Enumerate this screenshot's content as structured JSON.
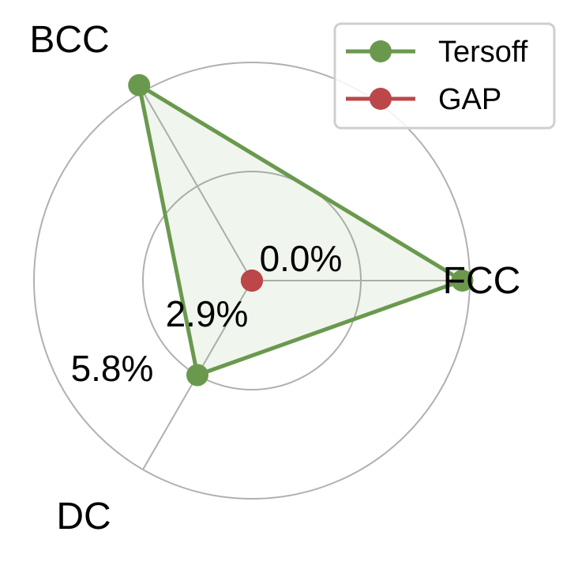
{
  "chart_data": {
    "type": "radar",
    "categories": [
      "FCC",
      "BCC",
      "DC"
    ],
    "radial_ticks": [
      "0.0%",
      "2.9%",
      "5.8%"
    ],
    "rlim": [
      0.0,
      5.8
    ],
    "rticks": [
      0.0,
      2.9,
      5.8
    ],
    "series": [
      {
        "name": "Tersoff",
        "values": [
          5.6,
          6.0,
          2.9
        ],
        "color": "#6a994e"
      },
      {
        "name": "GAP",
        "values": [
          0.0,
          0.0,
          0.0
        ],
        "color": "#bc4749"
      }
    ],
    "grid": true,
    "legend_location": "top-right",
    "grid_color": "#b0b0b0"
  }
}
